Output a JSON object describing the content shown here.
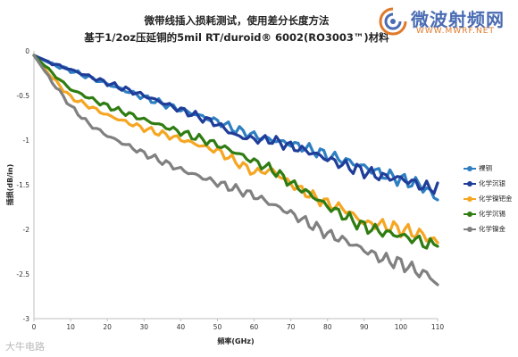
{
  "logo": {
    "name_cn": "微波射频网",
    "name_en": "WWW.MWRF.NET"
  },
  "watermark": "大牛电路",
  "chart_data": {
    "type": "line",
    "title": [
      "微带线插入损耗测试，使用差分长度方法",
      "基于1/2oz压延铜的5mil RT/duroid® 6002(RO3003™)材料"
    ],
    "xlabel": "频率(GHz)",
    "ylabel": "插损(dB/in)",
    "xlim": [
      0,
      110
    ],
    "ylim": [
      -3,
      0
    ],
    "xticks": [
      0,
      10,
      20,
      30,
      40,
      50,
      60,
      70,
      80,
      90,
      100,
      110
    ],
    "yticks": [
      0,
      -0.5,
      -1,
      -1.5,
      -2,
      -2.5,
      -3
    ],
    "grid": false,
    "legend_position": "right",
    "series": [
      {
        "name": "裸铜",
        "color": "#2e7fc2",
        "x": [
          0,
          5,
          10,
          20,
          30,
          40,
          50,
          55,
          60,
          65,
          70,
          75,
          80,
          85,
          90,
          95,
          100,
          105,
          107,
          110
        ],
        "y": [
          -0.05,
          -0.15,
          -0.22,
          -0.37,
          -0.52,
          -0.66,
          -0.79,
          -0.88,
          -0.95,
          -1.0,
          -1.04,
          -1.1,
          -1.17,
          -1.23,
          -1.3,
          -1.38,
          -1.44,
          -1.5,
          -1.55,
          -1.67
        ]
      },
      {
        "name": "化学沉银",
        "color": "#1f3d99",
        "x": [
          0,
          5,
          10,
          20,
          30,
          40,
          50,
          55,
          60,
          65,
          70,
          75,
          80,
          85,
          90,
          95,
          100,
          105,
          108,
          110
        ],
        "y": [
          -0.05,
          -0.14,
          -0.21,
          -0.36,
          -0.5,
          -0.66,
          -0.82,
          -0.95,
          -0.99,
          -1.0,
          -1.07,
          -1.13,
          -1.21,
          -1.29,
          -1.35,
          -1.41,
          -1.43,
          -1.5,
          -1.55,
          -1.48
        ]
      },
      {
        "name": "化学镍钯金",
        "color": "#f5a623",
        "x": [
          0,
          5,
          10,
          15,
          20,
          30,
          40,
          50,
          60,
          65,
          70,
          75,
          80,
          85,
          90,
          95,
          100,
          105,
          108,
          110
        ],
        "y": [
          -0.05,
          -0.3,
          -0.52,
          -0.62,
          -0.72,
          -0.87,
          -0.99,
          -1.12,
          -1.36,
          -1.34,
          -1.49,
          -1.61,
          -1.71,
          -1.78,
          -1.93,
          -1.95,
          -2.0,
          -2.05,
          -2.1,
          -2.15
        ]
      },
      {
        "name": "化学沉锡",
        "color": "#2f7d12",
        "x": [
          0,
          5,
          10,
          20,
          30,
          40,
          50,
          55,
          60,
          65,
          70,
          75,
          80,
          85,
          90,
          95,
          100,
          105,
          108,
          110
        ],
        "y": [
          -0.05,
          -0.25,
          -0.43,
          -0.62,
          -0.77,
          -0.91,
          -1.05,
          -1.14,
          -1.24,
          -1.33,
          -1.48,
          -1.6,
          -1.74,
          -1.86,
          -1.97,
          -2.03,
          -2.07,
          -2.13,
          -2.18,
          -2.19
        ]
      },
      {
        "name": "化学镍金",
        "color": "#808080",
        "x": [
          0,
          5,
          10,
          15,
          20,
          30,
          40,
          50,
          60,
          70,
          80,
          85,
          90,
          95,
          100,
          105,
          108,
          110
        ],
        "y": [
          -0.05,
          -0.35,
          -0.62,
          -0.82,
          -0.95,
          -1.15,
          -1.33,
          -1.48,
          -1.62,
          -1.82,
          -2.05,
          -2.13,
          -2.23,
          -2.33,
          -2.38,
          -2.48,
          -2.52,
          -2.62
        ]
      }
    ]
  }
}
